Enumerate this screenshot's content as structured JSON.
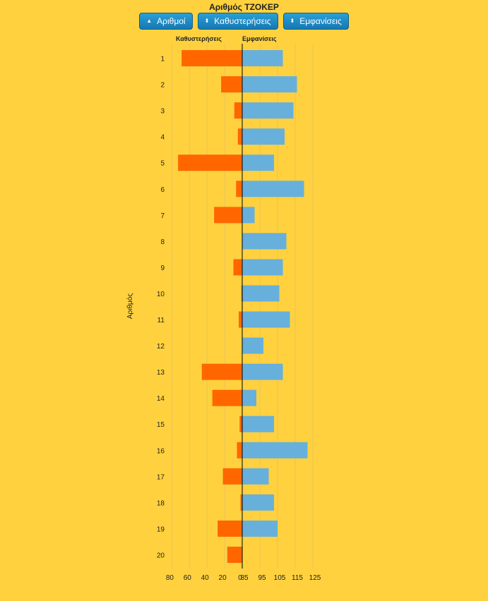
{
  "title": "Αριθμός ΤΖΟΚΕΡ",
  "buttons": [
    {
      "label": "Αριθμοί",
      "icon": "sort-up-icon",
      "glyph": "▲"
    },
    {
      "label": "Καθυστερήσεις",
      "icon": "sort-icon",
      "glyph": "⬍"
    },
    {
      "label": "Εμφανίσεις",
      "icon": "sort-icon",
      "glyph": "⬍"
    }
  ],
  "chart_data": {
    "type": "bar",
    "ylabel": "Αριθμός",
    "left_header": "Καθυστερήσεις",
    "right_header": "Εμφανίσεις",
    "categories": [
      "1",
      "2",
      "3",
      "4",
      "5",
      "6",
      "7",
      "8",
      "9",
      "10",
      "11",
      "12",
      "13",
      "14",
      "15",
      "16",
      "17",
      "18",
      "19",
      "20"
    ],
    "series": [
      {
        "name": "Καθυστερήσεις",
        "color": "#FF6600",
        "values": [
          69,
          24,
          9,
          5,
          73,
          7,
          32,
          0,
          10,
          1,
          4,
          0,
          46,
          34,
          3,
          6,
          22,
          2,
          28,
          17
        ]
      },
      {
        "name": "Εμφανίσεις",
        "color": "#67B0DC",
        "values": [
          108,
          116,
          114,
          109,
          103,
          120,
          92,
          110,
          108,
          106,
          112,
          97,
          108,
          93,
          103,
          122,
          100,
          103,
          105,
          83
        ]
      }
    ],
    "left_axis": {
      "ticks": [
        80,
        60,
        40,
        20,
        0
      ],
      "tick_labels": [
        "80",
        "60",
        "40",
        "20",
        "0"
      ],
      "range": [
        0,
        80
      ]
    },
    "right_axis": {
      "ticks": [
        85,
        95,
        105,
        115,
        125
      ],
      "tick_labels": [
        "85",
        "95",
        "105",
        "115",
        "125"
      ],
      "range": [
        85,
        125
      ]
    },
    "grid": true,
    "center_line_color": "#000000"
  }
}
